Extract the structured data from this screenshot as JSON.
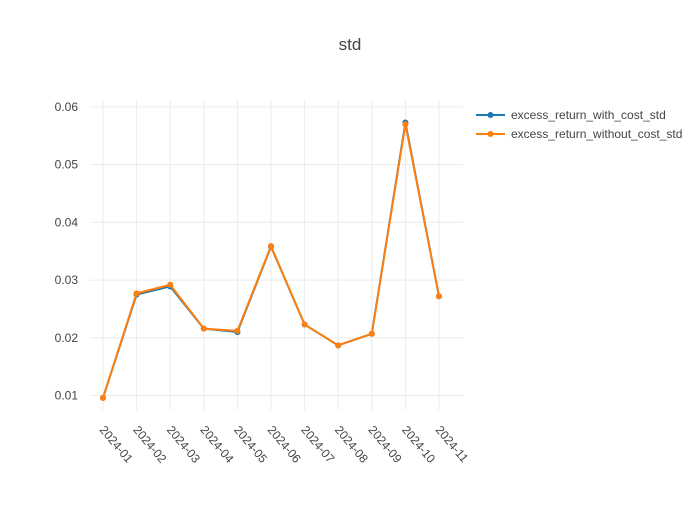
{
  "chart_data": {
    "type": "line",
    "title": "std",
    "xlabel": "",
    "ylabel": "",
    "categories": [
      "2024-01",
      "2024-02",
      "2024-03",
      "2024-04",
      "2024-05",
      "2024-06",
      "2024-07",
      "2024-08",
      "2024-09",
      "2024-10",
      "2024-11"
    ],
    "ylim": [
      0.0075,
      0.0612
    ],
    "yticks": [
      "0.01",
      "0.02",
      "0.03",
      "0.04",
      "0.05",
      "0.06"
    ],
    "ytick_values": [
      0.01,
      0.02,
      0.03,
      0.04,
      0.05,
      0.06
    ],
    "grid": true,
    "legend": "top-right",
    "series": [
      {
        "name": "excess_return_with_cost_std",
        "color": "#1f77b4",
        "values": [
          0.0096,
          0.0275,
          0.0289,
          0.0216,
          0.021,
          0.0358,
          0.0223,
          0.0187,
          0.0207,
          0.0573,
          0.0272
        ]
      },
      {
        "name": "excess_return_without_cost_std",
        "color": "#ff7f0e",
        "values": [
          0.0096,
          0.0277,
          0.0292,
          0.0216,
          0.0212,
          0.0359,
          0.0223,
          0.0187,
          0.0207,
          0.057,
          0.0272
        ]
      }
    ]
  }
}
